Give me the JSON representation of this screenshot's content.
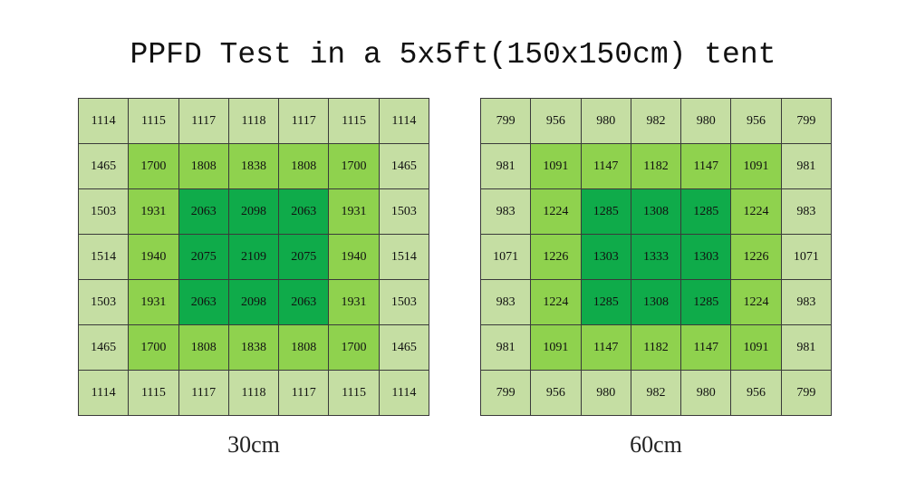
{
  "title": "PPFD Test in a 5x5ft(150x150cm) tent",
  "colors": {
    "outer": "#c5dea3",
    "middle": "#8fd24e",
    "center": "#0fab4a",
    "grid_line": "#3a3a3a"
  },
  "chart_data": [
    {
      "type": "heatmap",
      "caption": "30cm",
      "rows": [
        [
          1114,
          1115,
          1117,
          1118,
          1117,
          1115,
          1114
        ],
        [
          1465,
          1700,
          1808,
          1838,
          1808,
          1700,
          1465
        ],
        [
          1503,
          1931,
          2063,
          2098,
          2063,
          1931,
          1503
        ],
        [
          1514,
          1940,
          2075,
          2109,
          2075,
          1940,
          1514
        ],
        [
          1503,
          1931,
          2063,
          2098,
          2063,
          1931,
          1503
        ],
        [
          1465,
          1700,
          1808,
          1838,
          1808,
          1700,
          1465
        ],
        [
          1114,
          1115,
          1117,
          1118,
          1117,
          1115,
          1114
        ]
      ]
    },
    {
      "type": "heatmap",
      "caption": "60cm",
      "rows": [
        [
          799,
          956,
          980,
          982,
          980,
          956,
          799
        ],
        [
          981,
          1091,
          1147,
          1182,
          1147,
          1091,
          981
        ],
        [
          983,
          1224,
          1285,
          1308,
          1285,
          1224,
          983
        ],
        [
          1071,
          1226,
          1303,
          1333,
          1303,
          1226,
          1071
        ],
        [
          983,
          1224,
          1285,
          1308,
          1285,
          1224,
          983
        ],
        [
          981,
          1091,
          1147,
          1182,
          1147,
          1091,
          981
        ],
        [
          799,
          956,
          980,
          982,
          980,
          956,
          799
        ]
      ]
    }
  ]
}
